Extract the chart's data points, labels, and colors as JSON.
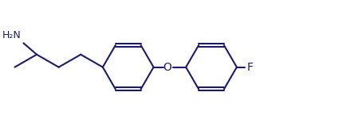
{
  "line_color": "#1a1a6e",
  "bg_color": "#ffffff",
  "line_width": 1.5,
  "font_size": 9,
  "figsize": [
    4.49,
    1.5
  ],
  "dpi": 100,
  "xlim": [
    0,
    4.49
  ],
  "ylim": [
    0,
    1.5
  ],
  "nh2_text": "H₂N",
  "f_text": "F",
  "o_text": "O"
}
